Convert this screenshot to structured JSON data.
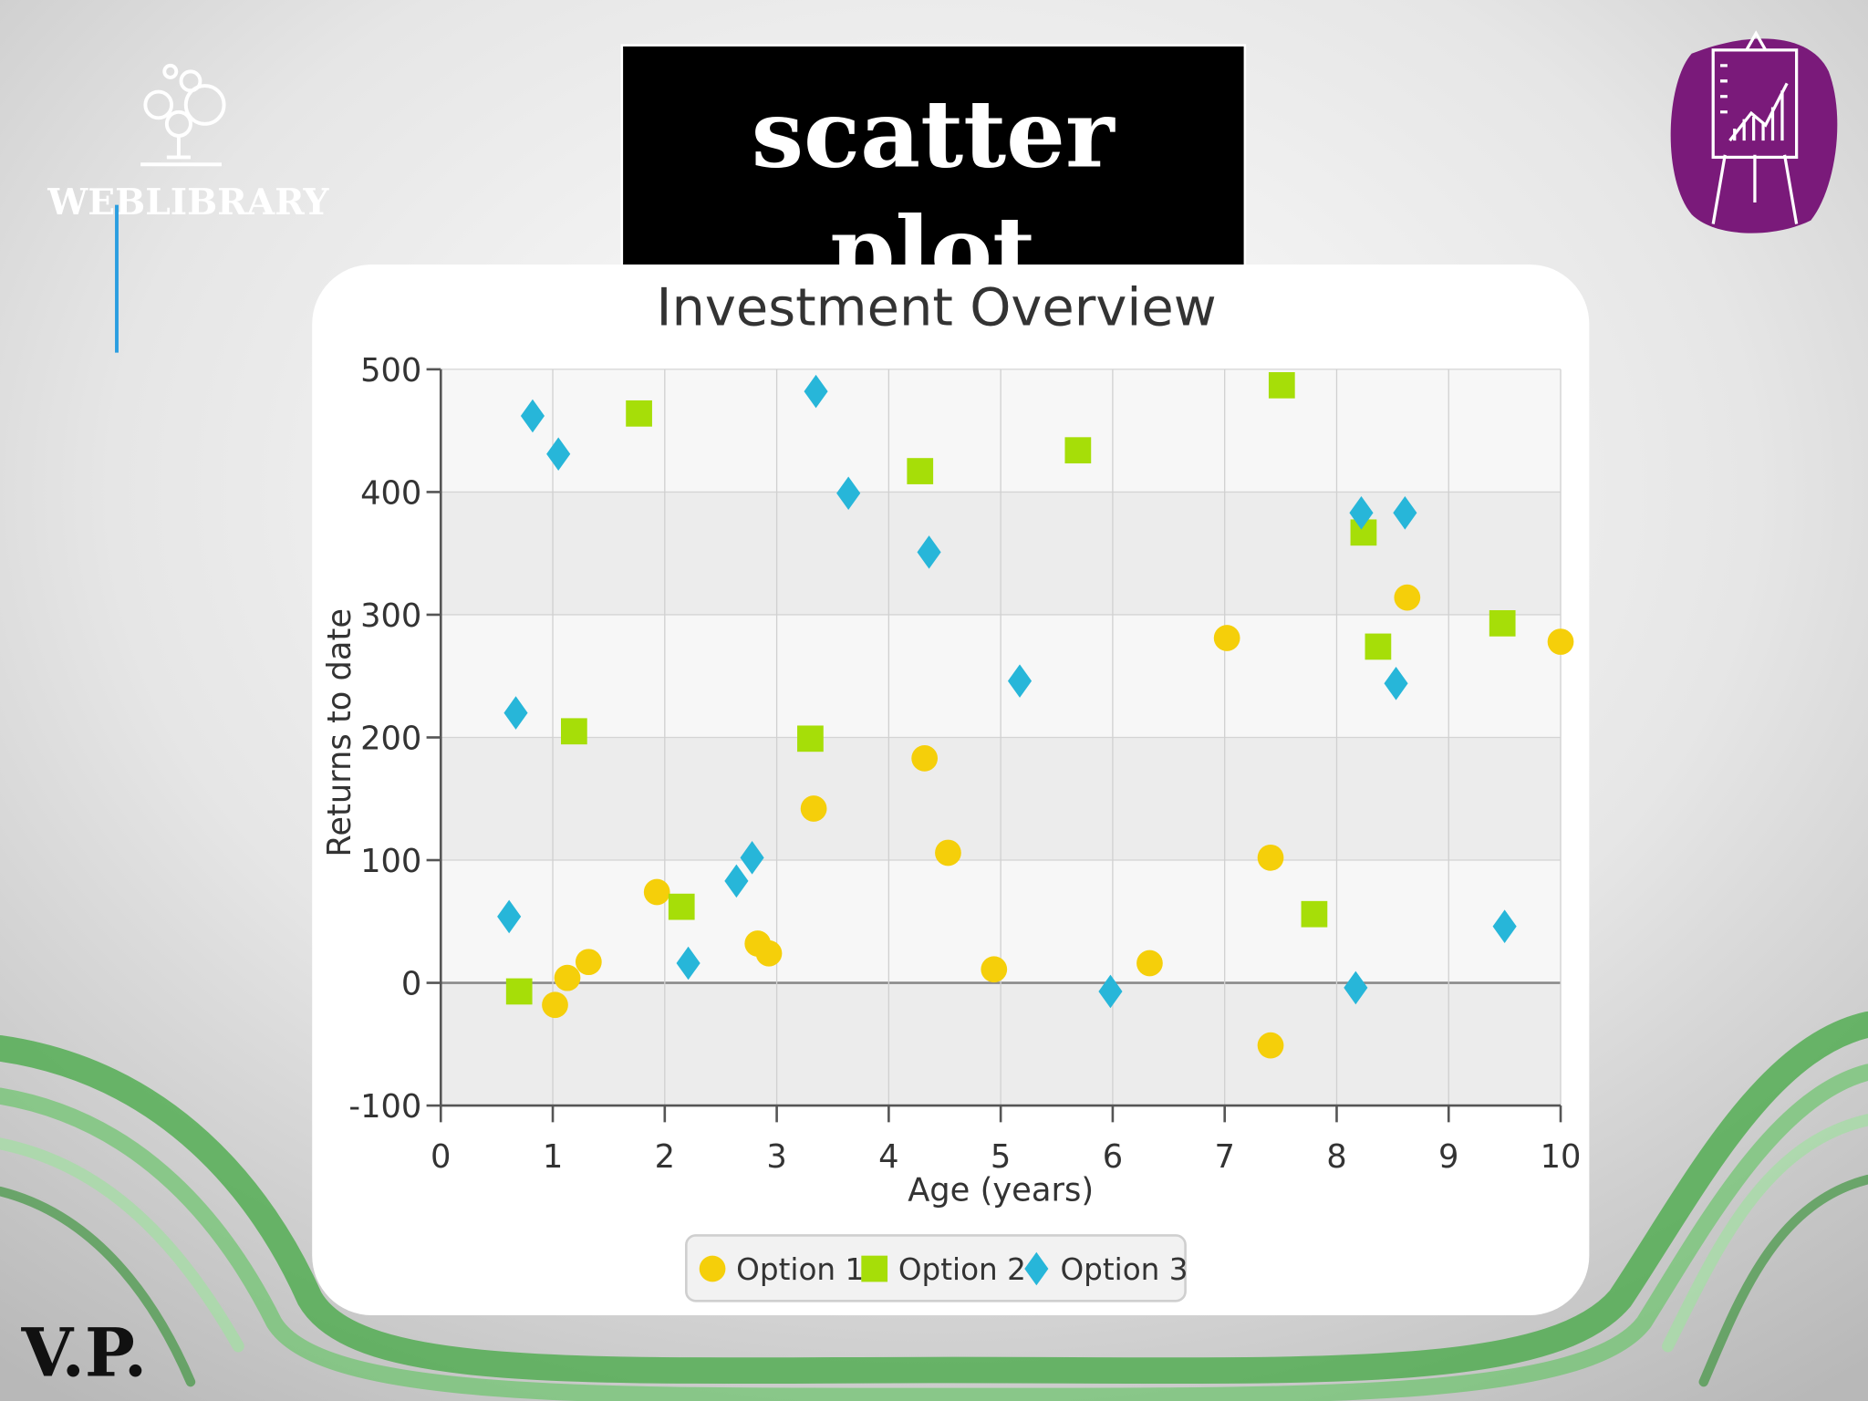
{
  "slide": {
    "title": "scatter plot",
    "logo": "WEBLIBRARY",
    "signature": "V.P."
  },
  "chart_data": {
    "type": "scatter",
    "title": "Investment Overview",
    "x_label": "Age (years)",
    "y_label": "Returns to date",
    "xlim": [
      0,
      10
    ],
    "xticks": [
      0,
      1,
      2,
      3,
      4,
      5,
      6,
      7,
      8,
      9,
      10
    ],
    "ylim": [
      -100,
      500
    ],
    "yticks": [
      -100,
      0,
      100,
      200,
      300,
      400,
      500
    ],
    "grid": true,
    "legend": "bottom",
    "series": [
      {
        "name": "Option 1",
        "color": "#f5cf0a",
        "marker": "circle",
        "x": [
          1.02,
          1.13,
          1.32,
          1.93,
          2.83,
          2.93,
          3.33,
          4.32,
          4.53,
          4.94,
          6.33,
          7.02,
          7.41,
          7.41,
          8.63,
          10.0
        ],
        "values": [
          -18,
          4,
          17,
          74,
          32,
          24,
          142,
          183,
          106,
          11,
          16,
          281,
          102,
          -51,
          314,
          278
        ]
      },
      {
        "name": "Option 2",
        "color": "#a6de08",
        "marker": "square",
        "x": [
          0.7,
          1.19,
          1.77,
          2.15,
          3.3,
          4.28,
          5.69,
          7.51,
          7.8,
          8.24,
          8.37,
          9.48
        ],
        "values": [
          -7,
          205,
          464,
          62,
          199,
          417,
          434,
          487,
          56,
          367,
          274,
          293
        ]
      },
      {
        "name": "Option 3",
        "color": "#27b6d9",
        "marker": "diamond",
        "x": [
          0.61,
          0.67,
          0.82,
          1.05,
          2.21,
          2.64,
          2.78,
          3.35,
          3.64,
          4.36,
          5.17,
          5.98,
          8.17,
          8.22,
          8.53,
          8.61,
          9.5
        ],
        "values": [
          54,
          220,
          462,
          431,
          16,
          83,
          102,
          482,
          399,
          351,
          246,
          -7,
          -4,
          383,
          244,
          383,
          46
        ]
      }
    ]
  }
}
